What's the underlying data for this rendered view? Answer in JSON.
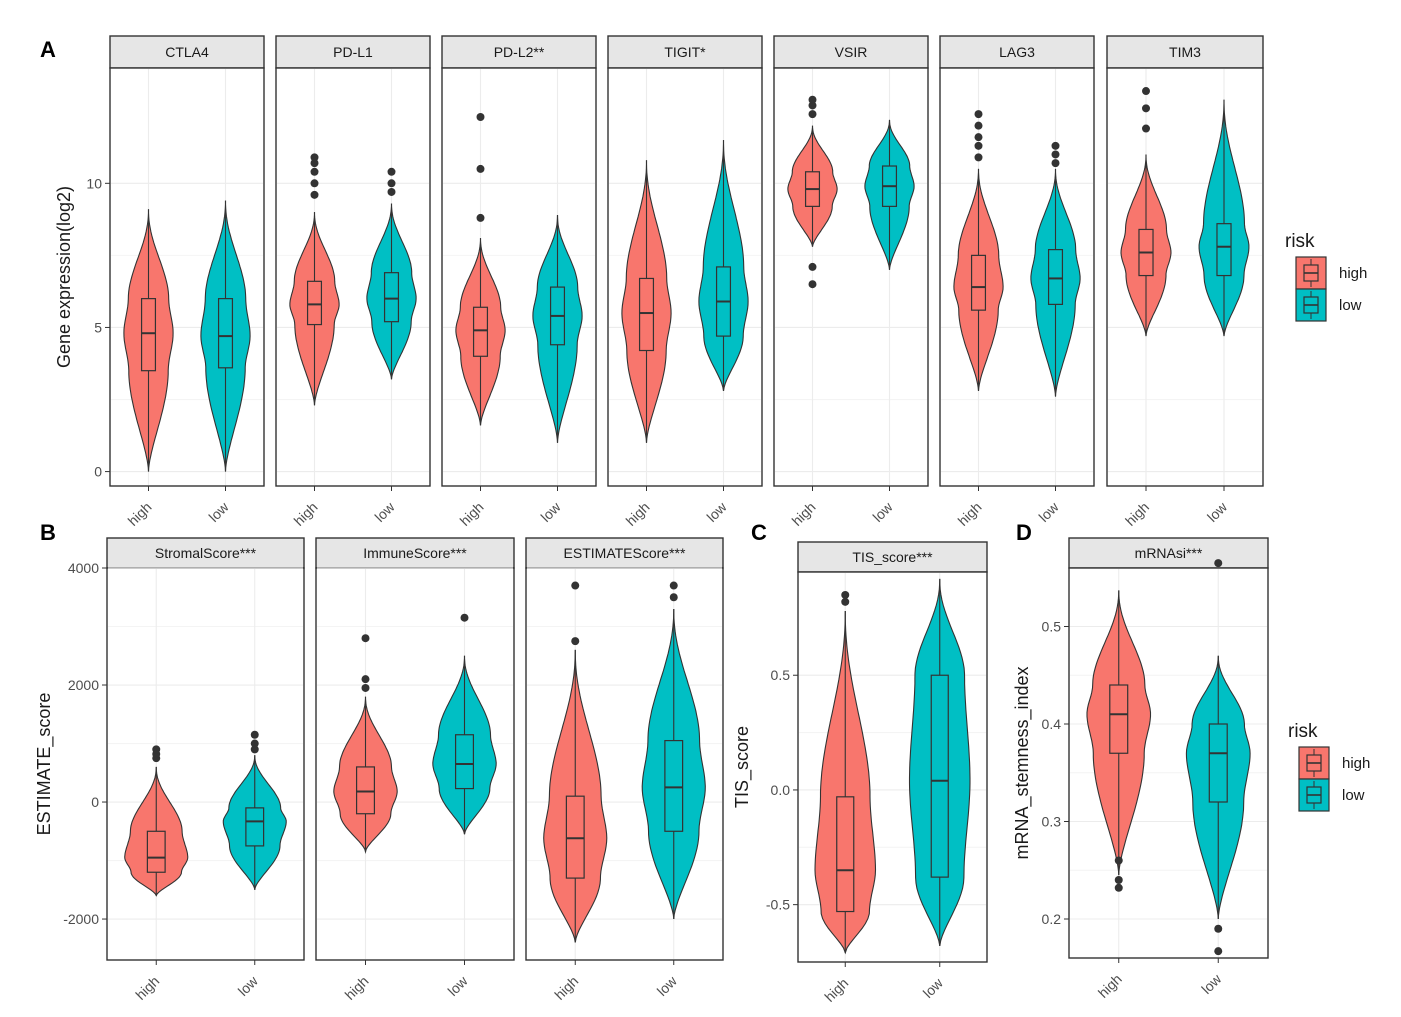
{
  "colors": {
    "high": "#F8766D",
    "low": "#00BFC4"
  },
  "panel_letters": {
    "A": "A",
    "B": "B",
    "C": "C",
    "D": "D"
  },
  "legend": [
    {
      "title": "risk",
      "items": [
        {
          "key": "high",
          "label": "high"
        },
        {
          "key": "low",
          "label": "low"
        }
      ]
    },
    {
      "title": "risk",
      "items": [
        {
          "key": "high",
          "label": "high"
        },
        {
          "key": "low",
          "label": "low"
        }
      ]
    }
  ],
  "chart_data": [
    {
      "type": "violin",
      "ylabel": "Gene expression(log2)",
      "ylim": [
        -0.5,
        14
      ],
      "yticks": [
        0,
        5,
        10
      ],
      "categories": [
        "high",
        "low"
      ],
      "facets": [
        {
          "label": "CTLA4",
          "groups": [
            {
              "group": "high",
              "min": 0,
              "q1": 3.5,
              "median": 4.8,
              "q3": 6.0,
              "max": 9.1,
              "outliers": []
            },
            {
              "group": "low",
              "min": 0,
              "q1": 3.6,
              "median": 4.7,
              "q3": 6.0,
              "max": 9.4,
              "outliers": []
            }
          ]
        },
        {
          "label": "PD-L1",
          "groups": [
            {
              "group": "high",
              "min": 2.3,
              "q1": 5.1,
              "median": 5.8,
              "q3": 6.6,
              "max": 9.0,
              "outliers": [
                9.6,
                10.0,
                10.4,
                10.7,
                10.9
              ]
            },
            {
              "group": "low",
              "min": 3.2,
              "q1": 5.2,
              "median": 6.0,
              "q3": 6.9,
              "max": 9.3,
              "outliers": [
                9.7,
                10.0,
                10.4
              ]
            }
          ]
        },
        {
          "label": "PD-L2**",
          "groups": [
            {
              "group": "high",
              "min": 1.6,
              "q1": 4.0,
              "median": 4.9,
              "q3": 5.7,
              "max": 8.1,
              "outliers": [
                8.8,
                10.5,
                12.3
              ]
            },
            {
              "group": "low",
              "min": 1.0,
              "q1": 4.4,
              "median": 5.4,
              "q3": 6.4,
              "max": 8.9,
              "outliers": []
            }
          ]
        },
        {
          "label": "TIGIT*",
          "groups": [
            {
              "group": "high",
              "min": 1.0,
              "q1": 4.2,
              "median": 5.5,
              "q3": 6.7,
              "max": 10.8,
              "outliers": []
            },
            {
              "group": "low",
              "min": 2.8,
              "q1": 4.7,
              "median": 5.9,
              "q3": 7.1,
              "max": 11.5,
              "outliers": []
            }
          ]
        },
        {
          "label": "VSIR",
          "groups": [
            {
              "group": "high",
              "min": 7.8,
              "q1": 9.2,
              "median": 9.8,
              "q3": 10.4,
              "max": 12.0,
              "outliers": [
                6.5,
                7.1,
                12.4,
                12.7,
                12.9
              ]
            },
            {
              "group": "low",
              "min": 7.0,
              "q1": 9.2,
              "median": 9.9,
              "q3": 10.6,
              "max": 12.2,
              "outliers": []
            }
          ]
        },
        {
          "label": "LAG3",
          "groups": [
            {
              "group": "high",
              "min": 2.8,
              "q1": 5.6,
              "median": 6.4,
              "q3": 7.5,
              "max": 10.5,
              "outliers": [
                10.9,
                11.3,
                11.6,
                12.0,
                12.4
              ]
            },
            {
              "group": "low",
              "min": 2.6,
              "q1": 5.8,
              "median": 6.7,
              "q3": 7.7,
              "max": 10.5,
              "outliers": [
                10.7,
                11.0,
                11.3
              ]
            }
          ]
        },
        {
          "label": "TIM3",
          "groups": [
            {
              "group": "high",
              "min": 4.7,
              "q1": 6.8,
              "median": 7.6,
              "q3": 8.4,
              "max": 11.0,
              "outliers": [
                11.9,
                12.6,
                13.2
              ]
            },
            {
              "group": "low",
              "min": 4.7,
              "q1": 6.8,
              "median": 7.8,
              "q3": 8.6,
              "max": 12.9,
              "outliers": []
            }
          ]
        }
      ]
    },
    {
      "type": "violin",
      "ylabel": "ESTIMATE_score",
      "ylim": [
        -2700,
        4000
      ],
      "yticks": [
        -2000,
        0,
        2000,
        4000
      ],
      "categories": [
        "high",
        "low"
      ],
      "facets": [
        {
          "label": "StromalScore***",
          "groups": [
            {
              "group": "high",
              "min": -1600,
              "q1": -1200,
              "median": -950,
              "q3": -500,
              "max": 600,
              "outliers": [
                750,
                820,
                900
              ]
            },
            {
              "group": "low",
              "min": -1500,
              "q1": -750,
              "median": -330,
              "q3": -100,
              "max": 800,
              "outliers": [
                900,
                1000,
                1150
              ]
            }
          ]
        },
        {
          "label": "ImmuneScore***",
          "groups": [
            {
              "group": "high",
              "min": -850,
              "q1": -200,
              "median": 180,
              "q3": 600,
              "max": 1800,
              "outliers": [
                1950,
                2100,
                2800
              ]
            },
            {
              "group": "low",
              "min": -550,
              "q1": 230,
              "median": 650,
              "q3": 1150,
              "max": 2500,
              "outliers": [
                3150
              ]
            }
          ]
        },
        {
          "label": "ESTIMATEScore***",
          "groups": [
            {
              "group": "high",
              "min": -2400,
              "q1": -1300,
              "median": -620,
              "q3": 100,
              "max": 2600,
              "outliers": [
                2750,
                3700
              ]
            },
            {
              "group": "low",
              "min": -2000,
              "q1": -500,
              "median": 250,
              "q3": 1050,
              "max": 3300,
              "outliers": [
                3500,
                3700
              ]
            }
          ]
        }
      ]
    },
    {
      "type": "violin",
      "ylabel": "TIS_score",
      "ylim": [
        -0.75,
        0.95
      ],
      "yticks": [
        -0.5,
        0.0,
        0.5
      ],
      "ytick_labels": [
        "-0.5",
        "0.0",
        "0.5"
      ],
      "categories": [
        "high",
        "low"
      ],
      "facets": [
        {
          "label": "TIS_score***",
          "groups": [
            {
              "group": "high",
              "min": -0.71,
              "q1": -0.53,
              "median": -0.35,
              "q3": -0.03,
              "max": 0.78,
              "outliers": [
                0.82,
                0.85
              ]
            },
            {
              "group": "low",
              "min": -0.68,
              "q1": -0.38,
              "median": 0.04,
              "q3": 0.5,
              "max": 0.92,
              "outliers": []
            }
          ]
        }
      ]
    },
    {
      "type": "violin",
      "ylabel": "mRNA_stemness_index",
      "ylim": [
        0.16,
        0.56
      ],
      "yticks": [
        0.2,
        0.3,
        0.4,
        0.5
      ],
      "ytick_labels": [
        "0.2",
        "0.3",
        "0.4",
        "0.5"
      ],
      "categories": [
        "high",
        "low"
      ],
      "facets": [
        {
          "label": "mRNAsi***",
          "groups": [
            {
              "group": "high",
              "min": 0.245,
              "q1": 0.37,
              "median": 0.41,
              "q3": 0.44,
              "max": 0.537,
              "outliers": [
                0.232,
                0.24,
                0.26
              ]
            },
            {
              "group": "low",
              "min": 0.2,
              "q1": 0.32,
              "median": 0.37,
              "q3": 0.4,
              "max": 0.47,
              "outliers": [
                0.167,
                0.19,
                0.565
              ]
            }
          ]
        }
      ]
    }
  ]
}
